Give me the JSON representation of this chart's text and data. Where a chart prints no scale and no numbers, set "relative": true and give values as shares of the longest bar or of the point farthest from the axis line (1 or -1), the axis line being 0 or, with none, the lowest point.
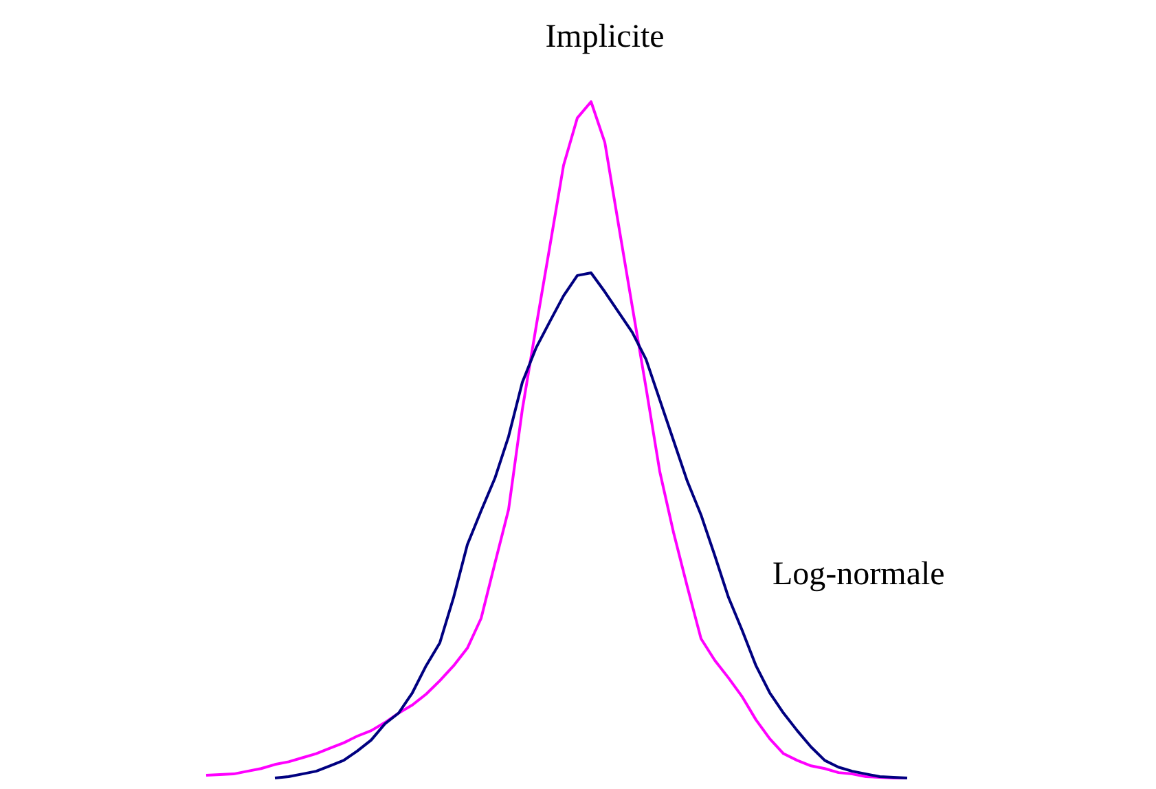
{
  "chart_data": {
    "type": "line",
    "relative": true,
    "legend": false,
    "grid": false,
    "marker": "none",
    "categories": [
      null,
      null,
      null,
      null,
      null,
      null,
      null,
      null,
      null,
      null,
      null,
      null,
      null,
      null,
      null,
      null,
      null,
      null,
      null,
      null,
      null,
      null,
      null,
      null,
      null,
      null,
      null,
      null,
      null,
      null,
      null,
      null,
      null,
      null,
      null,
      null,
      null,
      null,
      null,
      null,
      null,
      null,
      null,
      null,
      null,
      null,
      null,
      null,
      null,
      null,
      null,
      null
    ],
    "series": [
      {
        "name": "Implicite",
        "color": "#ff00ff",
        "values": [
          0.004,
          0.005,
          0.006,
          0.01,
          0.014,
          0.02,
          0.024,
          0.03,
          0.036,
          0.044,
          0.052,
          0.062,
          0.07,
          0.082,
          0.096,
          0.108,
          0.124,
          0.144,
          0.166,
          0.192,
          0.236,
          0.317,
          0.397,
          0.545,
          0.667,
          0.786,
          0.906,
          0.976,
          1,
          0.94,
          0.818,
          0.697,
          0.577,
          0.453,
          0.363,
          0.283,
          0.206,
          0.174,
          0.148,
          0.12,
          0.086,
          0.058,
          0.036,
          0.026,
          0.018,
          0.014,
          0.008,
          0.006,
          0.002,
          0.001,
          0,
          0
        ]
      },
      {
        "name": "Log-normale",
        "color": "#000080",
        "values": [
          null,
          null,
          null,
          null,
          null,
          0,
          0.002,
          0.006,
          0.01,
          0.018,
          0.026,
          0.04,
          0.056,
          0.08,
          0.096,
          0.126,
          0.166,
          0.2,
          0.267,
          0.345,
          0.395,
          0.443,
          0.505,
          0.585,
          0.636,
          0.675,
          0.713,
          0.743,
          0.747,
          0.719,
          0.689,
          0.659,
          0.619,
          0.559,
          0.499,
          0.439,
          0.389,
          0.329,
          0.267,
          0.218,
          0.166,
          0.126,
          0.096,
          0.07,
          0.046,
          0.026,
          0.016,
          0.01,
          0.006,
          0.002,
          0.001,
          0
        ]
      }
    ]
  }
}
